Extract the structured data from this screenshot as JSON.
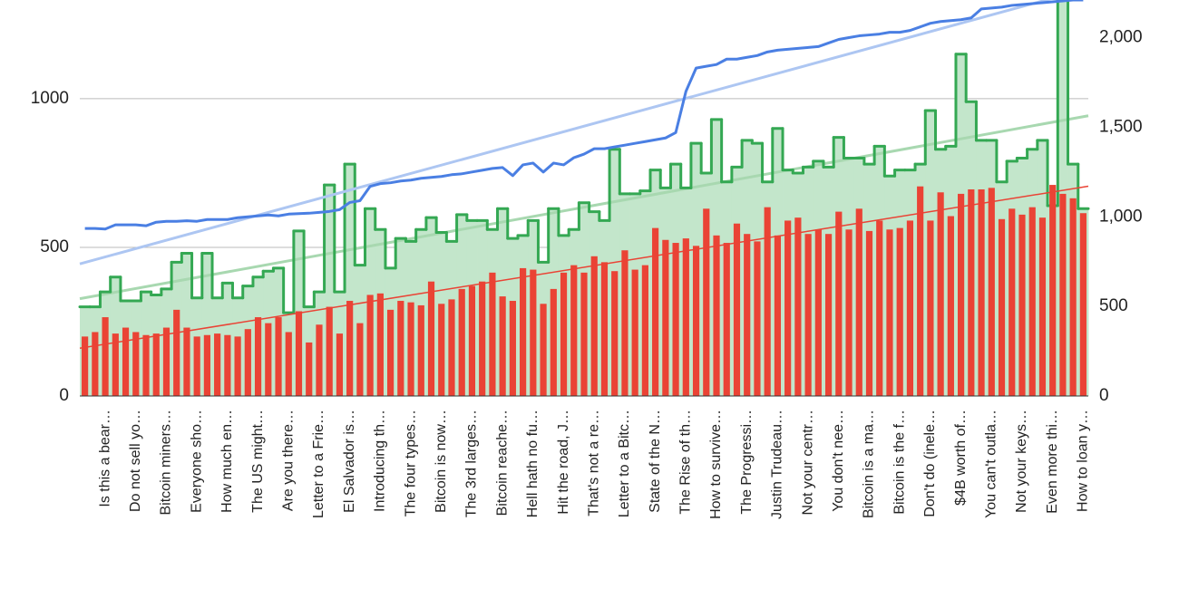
{
  "chart_data": {
    "type": "combo",
    "categories": [
      null,
      null,
      "Is this a bear…",
      null,
      null,
      "Do not sell yo…",
      null,
      null,
      "Bitcoin miners…",
      null,
      null,
      "Everyone sho…",
      null,
      null,
      "How much en…",
      null,
      null,
      "The US might…",
      null,
      null,
      "Are you there…",
      null,
      null,
      "Letter to a Frie…",
      null,
      null,
      "El Salvador is…",
      null,
      null,
      "Introducing th…",
      null,
      null,
      "The four types…",
      null,
      null,
      "Bitcoin is now…",
      null,
      null,
      "The 3rd larges…",
      null,
      null,
      "Bitcoin reache…",
      null,
      null,
      "Hell hath no fu…",
      null,
      null,
      "Hit the road, J…",
      null,
      null,
      "That's not a re…",
      null,
      null,
      "Letter to a Bitc…",
      null,
      null,
      "State of the N…",
      null,
      null,
      "The Rise of th…",
      null,
      null,
      "How to survive…",
      null,
      null,
      "The Progressi…",
      null,
      null,
      "Justin Trudeau…",
      null,
      null,
      "Not your centr…",
      null,
      null,
      "You don't nee…",
      null,
      null,
      "Bitcoin is a ma…",
      null,
      null,
      "Bitcoin is the f…",
      null,
      null,
      "Don't do (inele…",
      null,
      null,
      "$4B worth of…",
      null,
      null,
      "You can't outla…",
      null,
      null,
      "Not your keys…",
      null,
      null,
      "Even more thi…",
      null,
      null,
      "How to loan y…"
    ],
    "series": [
      {
        "type": "bar",
        "color": "#ea4335",
        "trendline": true,
        "trendline_color": "#ea4335",
        "values": [
          200,
          215,
          265,
          210,
          230,
          215,
          205,
          210,
          230,
          290,
          230,
          200,
          205,
          210,
          205,
          200,
          225,
          265,
          245,
          265,
          215,
          285,
          180,
          240,
          300,
          210,
          320,
          245,
          340,
          345,
          290,
          320,
          315,
          305,
          385,
          310,
          325,
          360,
          370,
          385,
          415,
          335,
          320,
          430,
          425,
          310,
          360,
          415,
          440,
          415,
          470,
          450,
          420,
          490,
          425,
          440,
          565,
          525,
          515,
          530,
          505,
          630,
          540,
          515,
          580,
          545,
          520,
          635,
          540,
          590,
          600,
          545,
          560,
          545,
          620,
          560,
          630,
          555,
          590,
          560,
          565,
          590,
          705,
          590,
          685,
          605,
          680,
          695,
          695,
          700,
          595,
          630,
          610,
          635,
          600,
          710,
          680,
          665,
          615
        ]
      },
      {
        "type": "step_area",
        "color": "#34a853",
        "fill": "#c3e6cb",
        "trendline": true,
        "trendline_color": "#a8d8b0",
        "values": [
          300,
          300,
          350,
          400,
          320,
          320,
          350,
          340,
          360,
          450,
          480,
          330,
          480,
          330,
          380,
          330,
          370,
          400,
          420,
          430,
          280,
          555,
          300,
          350,
          710,
          350,
          780,
          440,
          630,
          560,
          430,
          530,
          520,
          560,
          600,
          550,
          520,
          610,
          590,
          590,
          560,
          630,
          530,
          540,
          590,
          450,
          630,
          540,
          560,
          650,
          620,
          590,
          830,
          680,
          680,
          690,
          760,
          700,
          780,
          700,
          850,
          750,
          930,
          720,
          770,
          860,
          850,
          720,
          900,
          760,
          750,
          770,
          790,
          770,
          870,
          800,
          800,
          780,
          840,
          740,
          760,
          760,
          780,
          960,
          830,
          840,
          1150,
          990,
          860,
          860,
          720,
          790,
          800,
          830,
          860,
          640,
          1400,
          780,
          630
        ]
      },
      {
        "type": "line",
        "axis": "y2",
        "color": "#4a7fe3",
        "trendline": true,
        "trendline_color": "#adc6f2",
        "values": [
          935,
          935,
          932,
          955,
          955,
          955,
          950,
          970,
          975,
          975,
          978,
          975,
          985,
          985,
          985,
          995,
          1000,
          1005,
          1010,
          1005,
          1015,
          1018,
          1020,
          1025,
          1030,
          1040,
          1080,
          1090,
          1170,
          1185,
          1190,
          1200,
          1205,
          1215,
          1220,
          1225,
          1235,
          1240,
          1250,
          1260,
          1270,
          1275,
          1230,
          1290,
          1300,
          1250,
          1300,
          1290,
          1330,
          1350,
          1380,
          1380,
          1390,
          1400,
          1410,
          1420,
          1430,
          1440,
          1470,
          1700,
          1830,
          1840,
          1850,
          1880,
          1880,
          1890,
          1900,
          1920,
          1930,
          1935,
          1940,
          1945,
          1950,
          1970,
          1990,
          2000,
          2010,
          2015,
          2020,
          2030,
          2030,
          2040,
          2060,
          2080,
          2090,
          2095,
          2100,
          2110,
          2160,
          2165,
          2170,
          2180,
          2185,
          2190,
          2195,
          2200,
          2205,
          2210,
          2210
        ]
      }
    ],
    "ylim": [
      0,
      1332
    ],
    "yticks": [
      0,
      500,
      1000
    ],
    "y2lim": [
      0,
      2210
    ],
    "y2ticks": [
      0,
      500,
      {
        "value": 1000,
        "label": "1,000"
      },
      {
        "value": 1500,
        "label": "1,500"
      },
      {
        "value": 2000,
        "label": "2,000"
      }
    ],
    "grid": true
  }
}
